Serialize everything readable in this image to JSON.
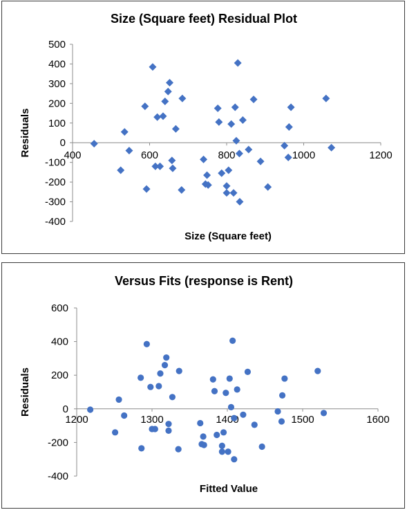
{
  "chart_data": [
    {
      "type": "scatter",
      "title": "Size (Square feet) Residual Plot",
      "xlabel": "Size (Square feet)",
      "ylabel": "Residuals",
      "xlim": [
        400,
        1200
      ],
      "ylim": [
        -400,
        500
      ],
      "xticks": [
        400,
        600,
        800,
        1000,
        1200
      ],
      "yticks": [
        -400,
        -300,
        -200,
        -100,
        0,
        100,
        200,
        300,
        400,
        500
      ],
      "marker": "diamond",
      "color": "#4472C4",
      "grid": false,
      "points": [
        [
          456,
          -5
        ],
        [
          525,
          -140
        ],
        [
          535,
          55
        ],
        [
          547,
          -40
        ],
        [
          588,
          185
        ],
        [
          592,
          -235
        ],
        [
          608,
          385
        ],
        [
          615,
          -120
        ],
        [
          620,
          130
        ],
        [
          627,
          -120
        ],
        [
          635,
          135
        ],
        [
          640,
          210
        ],
        [
          648,
          260
        ],
        [
          652,
          305
        ],
        [
          658,
          -90
        ],
        [
          660,
          -130
        ],
        [
          668,
          70
        ],
        [
          683,
          -240
        ],
        [
          685,
          225
        ],
        [
          740,
          -85
        ],
        [
          745,
          -210
        ],
        [
          749,
          -165
        ],
        [
          752,
          -215
        ],
        [
          777,
          175
        ],
        [
          780,
          105
        ],
        [
          787,
          -155
        ],
        [
          800,
          -220
        ],
        [
          800,
          -255
        ],
        [
          805,
          -140
        ],
        [
          812,
          95
        ],
        [
          818,
          -255
        ],
        [
          822,
          180
        ],
        [
          825,
          10
        ],
        [
          829,
          405
        ],
        [
          833,
          -55
        ],
        [
          834,
          -300
        ],
        [
          842,
          115
        ],
        [
          857,
          -35
        ],
        [
          870,
          220
        ],
        [
          888,
          -95
        ],
        [
          907,
          -225
        ],
        [
          950,
          -15
        ],
        [
          960,
          -75
        ],
        [
          962,
          80
        ],
        [
          967,
          180
        ],
        [
          1058,
          225
        ],
        [
          1072,
          -25
        ]
      ]
    },
    {
      "type": "scatter",
      "title": "Versus Fits (response is Rent)",
      "xlabel": "Fitted Value",
      "ylabel": "Residuals",
      "xlim": [
        1200,
        1600
      ],
      "ylim": [
        -400,
        600
      ],
      "xticks": [
        1200,
        1300,
        1400,
        1500,
        1600
      ],
      "yticks": [
        -400,
        -200,
        0,
        200,
        400,
        600
      ],
      "marker": "circle",
      "color": "#4472C4",
      "grid": false,
      "points": [
        [
          1218,
          -5
        ],
        [
          1251,
          -140
        ],
        [
          1256,
          55
        ],
        [
          1263,
          -40
        ],
        [
          1285,
          185
        ],
        [
          1286,
          -235
        ],
        [
          1293,
          385
        ],
        [
          1298,
          130
        ],
        [
          1300,
          -120
        ],
        [
          1304,
          -120
        ],
        [
          1309,
          135
        ],
        [
          1311,
          210
        ],
        [
          1317,
          260
        ],
        [
          1319,
          305
        ],
        [
          1322,
          -90
        ],
        [
          1322,
          -130
        ],
        [
          1327,
          70
        ],
        [
          1335,
          -240
        ],
        [
          1336,
          225
        ],
        [
          1364,
          -85
        ],
        [
          1366,
          -210
        ],
        [
          1368,
          -165
        ],
        [
          1369,
          -215
        ],
        [
          1381,
          175
        ],
        [
          1383,
          105
        ],
        [
          1386,
          -155
        ],
        [
          1393,
          -220
        ],
        [
          1393,
          -255
        ],
        [
          1395,
          -140
        ],
        [
          1398,
          95
        ],
        [
          1401,
          -255
        ],
        [
          1403,
          180
        ],
        [
          1405,
          10
        ],
        [
          1407,
          405
        ],
        [
          1409,
          -55
        ],
        [
          1409,
          -300
        ],
        [
          1413,
          115
        ],
        [
          1421,
          -35
        ],
        [
          1427,
          220
        ],
        [
          1436,
          -95
        ],
        [
          1446,
          -225
        ],
        [
          1467,
          -15
        ],
        [
          1472,
          -75
        ],
        [
          1473,
          80
        ],
        [
          1476,
          180
        ],
        [
          1520,
          225
        ],
        [
          1528,
          -25
        ]
      ]
    }
  ]
}
